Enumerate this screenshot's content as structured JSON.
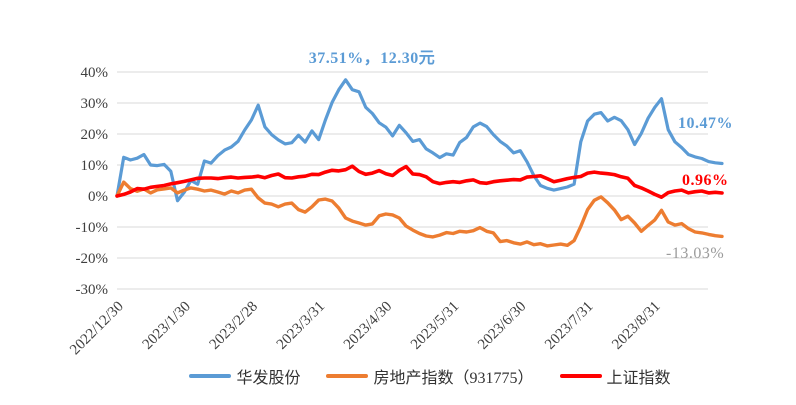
{
  "page_background": "#FFFFFF",
  "colors": {
    "gridline": "#D9D9D9",
    "axis_text": "#3F3F3F",
    "muted_label": "#9B9B9B"
  },
  "chart_data": {
    "type": "line",
    "title": "",
    "xlabel": "",
    "ylabel": "",
    "unit": "%",
    "grid": true,
    "legend_position": "bottom",
    "ylim": [
      -30,
      40
    ],
    "y_ticks": [
      "40%",
      "30%",
      "20%",
      "10%",
      "0%",
      "-10%",
      "-20%",
      "-30%"
    ],
    "y_tick_values": [
      40,
      30,
      20,
      10,
      0,
      -10,
      -20,
      -30
    ],
    "x_ticks": [
      "2022/12/30",
      "2023/1/30",
      "2023/2/28",
      "2023/3/31",
      "2023/4/30",
      "2023/5/31",
      "2023/6/30",
      "2023/7/31",
      "2023/8/31"
    ],
    "x_sampling": "91 evenly spaced samples from 2022/12/30 to chart end (values in %)",
    "series": [
      {
        "name": "华发股份",
        "slug": "huafa-shares",
        "color": "#5B9BD5",
        "end_label": "10.47%",
        "values": [
          0,
          12.5,
          11.6,
          12.2,
          13.4,
          10.0,
          9.8,
          10.2,
          8.0,
          -1.5,
          1.2,
          5.0,
          3.8,
          11.3,
          10.6,
          13.0,
          14.8,
          15.8,
          17.6,
          21.3,
          24.5,
          29.3,
          22.3,
          19.8,
          18.1,
          16.8,
          17.2,
          19.6,
          17.4,
          21.0,
          18.2,
          24.5,
          30.2,
          34.3,
          37.5,
          34.3,
          33.6,
          28.6,
          26.6,
          23.6,
          22.2,
          19.4,
          22.8,
          20.4,
          17.6,
          18.2,
          15.2,
          13.9,
          12.4,
          13.6,
          13.2,
          17.3,
          18.9,
          22.3,
          23.5,
          22.4,
          19.8,
          17.6,
          16.1,
          13.9,
          14.6,
          11.0,
          6.6,
          3.4,
          2.5,
          1.9,
          2.4,
          2.9,
          3.8,
          17.5,
          24.2,
          26.4,
          26.9,
          24.2,
          25.4,
          24.3,
          21.4,
          16.6,
          20.2,
          25.1,
          28.6,
          31.4,
          21.4,
          17.5,
          15.6,
          13.4,
          12.6,
          12.1,
          11.1,
          10.7,
          10.47
        ]
      },
      {
        "name": "房地产指数（931775）",
        "slug": "real-estate-index",
        "color": "#ED7D31",
        "end_label": "-13.03%",
        "values": [
          0,
          4.5,
          2.4,
          1.5,
          2.3,
          1.0,
          2.0,
          2.3,
          2.6,
          1.0,
          1.9,
          2.6,
          2.2,
          1.6,
          1.9,
          1.3,
          0.6,
          1.6,
          1.0,
          1.9,
          2.2,
          -0.6,
          -2.3,
          -2.6,
          -3.5,
          -2.6,
          -2.3,
          -4.4,
          -5.2,
          -3.5,
          -1.3,
          -1.0,
          -1.6,
          -3.9,
          -7.1,
          -8.1,
          -8.7,
          -9.4,
          -9.0,
          -6.4,
          -5.8,
          -6.1,
          -7.1,
          -9.7,
          -11.0,
          -12.1,
          -12.9,
          -13.2,
          -12.6,
          -11.8,
          -12.1,
          -11.4,
          -11.6,
          -11.2,
          -10.2,
          -11.4,
          -11.9,
          -14.7,
          -14.4,
          -15.1,
          -15.5,
          -14.8,
          -15.7,
          -15.4,
          -16.1,
          -15.8,
          -15.5,
          -15.9,
          -14.4,
          -9.8,
          -4.4,
          -1.4,
          -0.3,
          -2.2,
          -4.5,
          -7.6,
          -6.5,
          -8.7,
          -11.4,
          -9.5,
          -7.7,
          -4.6,
          -8.4,
          -9.4,
          -8.9,
          -10.5,
          -11.6,
          -11.9,
          -12.4,
          -12.8,
          -13.03
        ]
      },
      {
        "name": "上证指数",
        "slug": "sse-index",
        "color": "#FF0000",
        "end_label": "0.96%",
        "values": [
          0,
          0.5,
          1.3,
          2.4,
          2.2,
          2.8,
          3.1,
          3.4,
          3.9,
          4.3,
          4.7,
          5.2,
          5.7,
          5.8,
          5.8,
          5.6,
          5.9,
          6.1,
          5.8,
          6.0,
          6.1,
          6.4,
          5.9,
          6.6,
          7.1,
          5.9,
          5.8,
          6.2,
          6.4,
          7.0,
          6.9,
          7.7,
          8.3,
          8.1,
          8.5,
          9.6,
          7.9,
          7.0,
          7.4,
          8.2,
          7.2,
          6.6,
          8.3,
          9.5,
          7.1,
          6.9,
          6.2,
          4.6,
          4.0,
          4.4,
          4.6,
          4.4,
          4.9,
          5.2,
          4.3,
          4.1,
          4.6,
          4.9,
          5.1,
          5.3,
          5.2,
          6.1,
          6.3,
          6.5,
          5.6,
          4.6,
          5.1,
          5.6,
          6.0,
          6.3,
          7.4,
          7.7,
          7.4,
          7.2,
          6.9,
          6.2,
          5.7,
          3.4,
          2.6,
          1.6,
          0.5,
          -0.4,
          1.1,
          1.6,
          1.9,
          1.0,
          1.4,
          1.6,
          1.0,
          1.2,
          0.96
        ]
      }
    ],
    "annotations": {
      "peak": "37.51%，12.30元",
      "huafa_end": "10.47%",
      "sse_end": "0.96%",
      "real_estate_end": "-13.03%"
    }
  }
}
